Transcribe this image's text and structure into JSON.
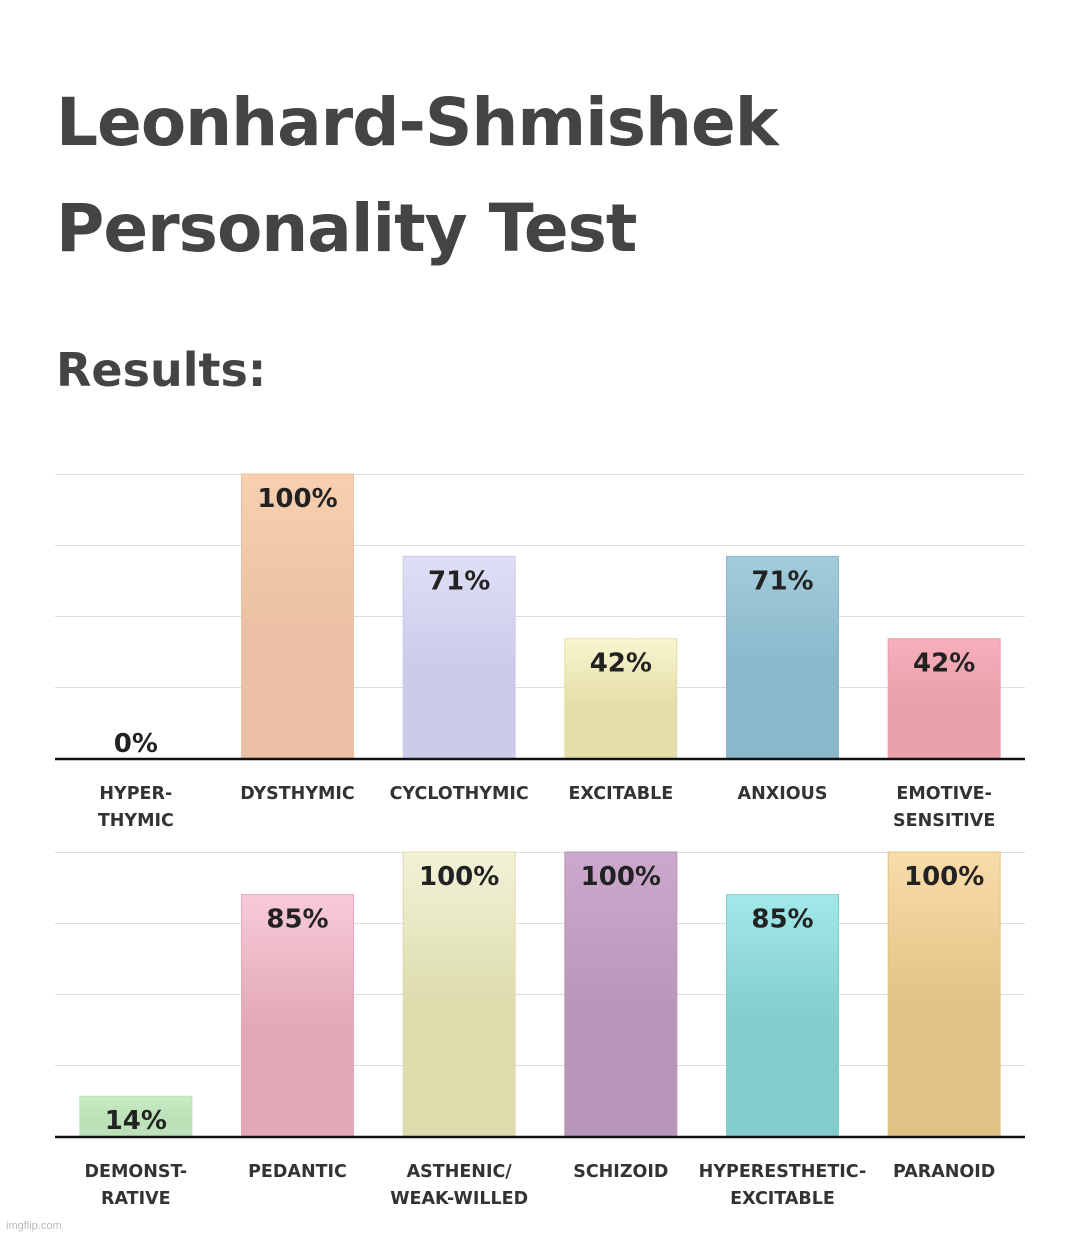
{
  "title_line1": "Leonhard-Shmishek",
  "title_line2": "Personality Test",
  "subtitle": "Results:",
  "watermark": "imgflip.com",
  "chart_data": [
    {
      "type": "bar",
      "ylim": [
        0,
        100
      ],
      "grid": true,
      "categories": [
        [
          "HYPER-",
          "THYMIC"
        ],
        [
          "DYSTHYMIC"
        ],
        [
          "CYCLOTHYMIC"
        ],
        [
          "EXCITABLE"
        ],
        [
          "ANXIOUS"
        ],
        [
          "EMOTIVE-",
          "SENSITIVE"
        ]
      ],
      "values": [
        0,
        100,
        71,
        42,
        71,
        42
      ],
      "value_labels": [
        "0%",
        "100%",
        "71%",
        "42%",
        "71%",
        "42%"
      ],
      "colors": [
        [
          "#cccccc",
          "#cccccc"
        ],
        [
          "#f8d0ae",
          "#ebc0a4"
        ],
        [
          "#dedef6",
          "#ccccea"
        ],
        [
          "#f8f6d0",
          "#e4dea8"
        ],
        [
          "#a2ccdc",
          "#8ab8ca"
        ],
        [
          "#f8aebc",
          "#eaa0aa"
        ]
      ]
    },
    {
      "type": "bar",
      "ylim": [
        0,
        100
      ],
      "grid": true,
      "categories": [
        [
          "DEMONST-",
          "RATIVE"
        ],
        [
          "PEDANTIC"
        ],
        [
          "ASTHENIC/",
          "WEAK-WILLED"
        ],
        [
          "SCHIZOID"
        ],
        [
          "HYPERESTHETIC-",
          "EXCITABLE"
        ],
        [
          "PARANOID"
        ]
      ],
      "values": [
        14,
        85,
        100,
        100,
        85,
        100
      ],
      "value_labels": [
        "14%",
        "85%",
        "100%",
        "100%",
        "85%",
        "100%"
      ],
      "colors": [
        [
          "#c8ecc4",
          "#bce0b8"
        ],
        [
          "#f8cad8",
          "#e2a8b6"
        ],
        [
          "#f2f2d8",
          "#dcdcac"
        ],
        [
          "#cca8cc",
          "#b896ba"
        ],
        [
          "#a2e8e8",
          "#82cccc"
        ],
        [
          "#f8dcaa",
          "#e2c284"
        ]
      ]
    }
  ]
}
